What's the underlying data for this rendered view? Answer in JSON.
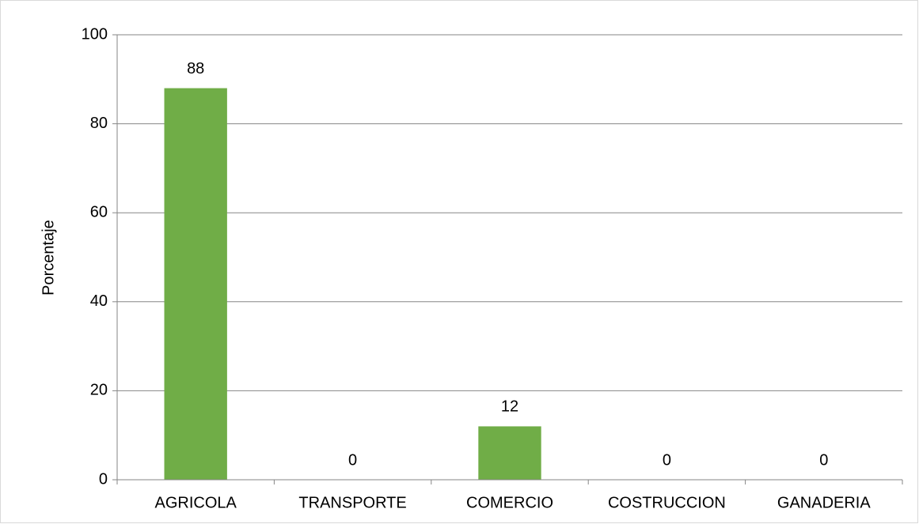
{
  "chart_data": {
    "type": "bar",
    "y_label": "Porcentaje",
    "categories": [
      "AGRICOLA",
      "TRANSPORTE",
      "COMERCIO",
      "COSTRUCCION",
      "GANADERIA"
    ],
    "values": [
      88,
      0,
      12,
      0,
      0
    ],
    "color": "#70ad47",
    "ylim": [
      0,
      100
    ],
    "yticks": [
      0,
      20,
      40,
      60,
      80,
      100
    ],
    "grid": true
  }
}
